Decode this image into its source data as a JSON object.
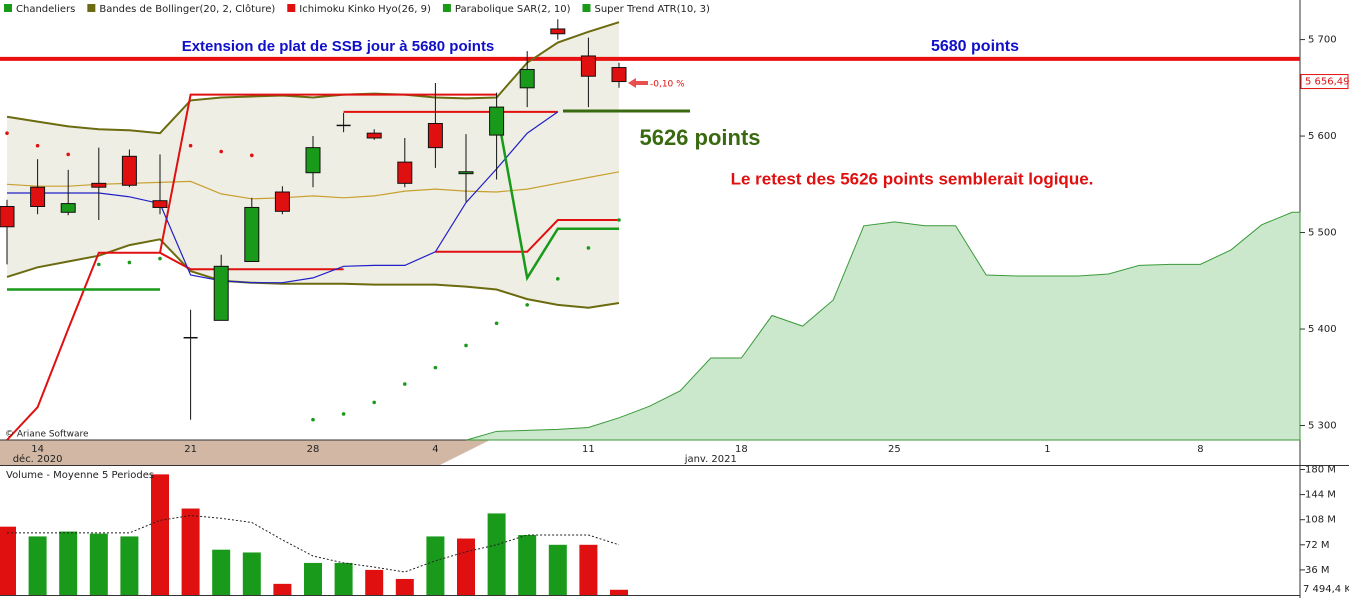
{
  "chart_data": [
    {
      "type": "candlestick",
      "legend": [
        {
          "name": "Chandeliers",
          "color": "#1a9a1a"
        },
        {
          "name": "Bandes de Bollinger(20, 2, Clôture)",
          "color": "#6b6b10"
        },
        {
          "name": "Ichimoku Kinko Hyo(26, 9)",
          "color": "#e01010"
        },
        {
          "name": "Parabolique SAR(2, 10)",
          "color": "#1a9a1a"
        },
        {
          "name": "Super Trend ATR(10, 3)",
          "color": "#1a9a1a"
        }
      ],
      "categories": [
        null,
        "14",
        null,
        null,
        null,
        null,
        "21",
        null,
        null,
        null,
        "28",
        null,
        null,
        null,
        "4",
        null,
        null,
        null,
        null,
        "11",
        null,
        null,
        null,
        null,
        "18",
        null,
        null,
        null,
        null,
        "25",
        null,
        null,
        null,
        null,
        "1",
        null,
        null,
        null,
        null,
        "8",
        null,
        null,
        null
      ],
      "category_months": [
        null,
        "déc. 2020",
        null,
        null,
        null,
        null,
        null,
        null,
        null,
        null,
        null,
        null,
        null,
        null,
        null,
        null,
        null,
        null,
        null,
        null,
        null,
        null,
        null,
        "janv. 2021",
        null,
        null,
        null,
        null,
        null,
        null,
        null,
        null,
        null,
        null,
        null,
        null,
        null,
        null,
        null,
        null,
        null,
        null,
        null
      ],
      "candles": {
        "up_color": "#1a9a1a",
        "down_color": "#e01010",
        "open": [
          5527,
          5547,
          5521,
          5551,
          5579,
          5533,
          5391,
          5409,
          5470,
          5542,
          5562,
          5611,
          5603,
          5573,
          5613,
          5561,
          5601,
          5650,
          5711,
          5683,
          5671,
          null,
          null,
          null,
          null,
          null,
          null,
          null,
          null,
          null,
          null,
          null,
          null,
          null,
          null,
          null,
          null,
          null,
          null,
          null,
          null,
          null,
          null
        ],
        "high": [
          5534,
          5576,
          5565,
          5588,
          5586,
          5581,
          5420,
          5477,
          5536,
          5548,
          5600,
          5624,
          5607,
          5598,
          5655,
          5602,
          5645,
          5688,
          5721,
          5702,
          5676,
          null,
          null,
          null,
          null,
          null,
          null,
          null,
          null,
          null,
          null,
          null,
          null,
          null,
          null,
          null,
          null,
          null,
          null,
          null,
          null,
          null,
          null
        ],
        "low": [
          5467,
          5519,
          5518,
          5513,
          5547,
          5519,
          5306,
          5409,
          5470,
          5519,
          5547,
          5604,
          5596,
          5547,
          5567,
          5532,
          5555,
          5630,
          5700,
          5630,
          5650,
          null,
          null,
          null,
          null,
          null,
          null,
          null,
          null,
          null,
          null,
          null,
          null,
          null,
          null,
          null,
          null,
          null,
          null,
          null,
          null,
          null,
          null
        ],
        "close": [
          5506,
          5527,
          5530,
          5547,
          5549,
          5526,
          5391,
          5465,
          5526,
          5522,
          5588,
          5611,
          5598,
          5551,
          5588,
          5563,
          5630,
          5669,
          5706,
          5662,
          5656.49,
          null,
          null,
          null,
          null,
          null,
          null,
          null,
          null,
          null,
          null,
          null,
          null,
          null,
          null,
          null,
          null,
          null,
          null,
          null,
          null,
          null,
          null
        ]
      },
      "last_price_label": "5 656,49",
      "bollinger": {
        "color": "#6b6b10",
        "middle_color": "#c8a030",
        "fill": "#efeee4",
        "upper": [
          5620,
          5615,
          5610,
          5607,
          5606,
          5603,
          5637,
          5640,
          5641,
          5642,
          5640,
          5643,
          5644,
          5643,
          5640,
          5639,
          5640,
          5676,
          5697,
          5708,
          5718,
          null,
          null,
          null,
          null,
          null,
          null,
          null,
          null,
          null,
          null,
          null,
          null,
          null,
          null,
          null,
          null,
          null,
          null,
          null,
          null,
          null,
          null
        ],
        "middle": [
          5550,
          5548,
          5548,
          5550,
          5551,
          5552,
          5553,
          5540,
          5535,
          5536,
          5538,
          5536,
          5538,
          5543,
          5545,
          5543,
          5542,
          5545,
          5551,
          5557,
          5563,
          null,
          null,
          null,
          null,
          null,
          null,
          null,
          null,
          null,
          null,
          null,
          null,
          null,
          null,
          null,
          null,
          null,
          null,
          null,
          null,
          null,
          null
        ],
        "lower": [
          5454,
          5464,
          5470,
          5476,
          5487,
          5493,
          5460,
          5450,
          5448,
          5447,
          5447,
          5447,
          5446,
          5446,
          5446,
          5444,
          5441,
          5431,
          5425,
          5422,
          5427,
          null,
          null,
          null,
          null,
          null,
          null,
          null,
          null,
          null,
          null,
          null,
          null,
          null,
          null,
          null,
          null,
          null,
          null,
          null,
          null,
          null,
          null
        ]
      },
      "ichimoku": {
        "lines": [
          {
            "color": "#e01010",
            "values": [
              5285,
              5319,
              5400,
              5479,
              5479,
              5479,
              5643,
              5643,
              5643,
              5643,
              5643,
              5643,
              5643,
              5643,
              5643,
              5643,
              5643,
              null,
              null,
              null,
              null,
              null,
              null,
              null,
              null,
              null,
              null,
              null,
              null,
              null,
              null,
              null,
              null,
              null,
              null,
              null,
              null,
              null,
              null,
              null,
              null,
              null,
              null
            ]
          },
          {
            "color": "#e01010",
            "values": [
              null,
              null,
              null,
              null,
              null,
              5479,
              5462,
              5462,
              5462,
              5462,
              5462,
              5462,
              null,
              null,
              5480,
              5480,
              5480,
              5480,
              5513,
              5513,
              5513,
              null,
              null,
              null,
              null,
              null,
              null,
              null,
              null,
              null,
              null,
              null,
              null,
              null,
              null,
              null,
              null,
              null,
              null,
              null,
              null,
              null,
              null
            ]
          },
          {
            "color": "#e01010",
            "values": [
              null,
              null,
              null,
              null,
              null,
              null,
              null,
              null,
              null,
              null,
              null,
              5625,
              5625,
              5625,
              5625,
              5625,
              5625,
              5625,
              5625,
              null,
              null,
              null,
              null,
              null,
              null,
              null,
              null,
              null,
              null,
              null,
              null,
              null,
              null,
              null,
              null,
              null,
              null,
              null,
              null,
              null,
              null,
              null,
              null
            ]
          },
          {
            "color": "#2020c8",
            "values": [
              5541,
              5541,
              5541,
              5541,
              5537,
              5530,
              5456,
              5450,
              5448,
              5448,
              5453,
              5465,
              5466,
              5466,
              5480,
              5531,
              5566,
              5603,
              5625,
              null,
              null,
              null,
              null,
              null,
              null,
              null,
              null,
              null,
              null,
              null,
              null,
              null,
              null,
              null,
              null,
              null,
              null,
              null,
              null,
              null,
              null,
              null,
              null
            ]
          }
        ],
        "cloud": {
          "color": "#cce8cc",
          "line_color": "#3a9a3a",
          "values": [
            null,
            null,
            null,
            null,
            null,
            null,
            null,
            null,
            null,
            null,
            null,
            null,
            null,
            null,
            null,
            null,
            5294,
            5295,
            5296,
            5298,
            5308,
            5320,
            5336,
            5370,
            5370,
            5414,
            5403,
            5430,
            5507,
            5511,
            5507,
            5507,
            5456,
            5455,
            5455,
            5455,
            5457,
            5466,
            5467,
            5467,
            5482,
            5508,
            5521
          ]
        }
      },
      "sar": {
        "above_color": "#e01010",
        "below_color": "#1a9a1a",
        "values": [
          5603,
          5590,
          5581,
          5467,
          5469,
          5473,
          5590,
          5584,
          5580,
          null,
          5306,
          5312,
          5324,
          5343,
          5360,
          5383,
          5406,
          5425,
          5452,
          5484,
          5513,
          null,
          null,
          null,
          null,
          null,
          null,
          null,
          null,
          null,
          null,
          null,
          null,
          null,
          null,
          null,
          null,
          null,
          null,
          null,
          null,
          null,
          null
        ]
      },
      "supertrend": {
        "color": "#1a9a1a",
        "values": [
          5441,
          5441,
          5441,
          5441,
          5441,
          5441,
          null,
          null,
          null,
          null,
          null,
          null,
          null,
          null,
          null,
          null,
          5628,
          5453,
          5504,
          5504,
          5504,
          null,
          null,
          null,
          null,
          null,
          null,
          null,
          null,
          null,
          null,
          null,
          null,
          null,
          null,
          null,
          null,
          null,
          null,
          null,
          null,
          null,
          null
        ]
      },
      "ylim": [
        5285,
        5741
      ],
      "yticks": [
        {
          "value": 5300,
          "label": "5 300"
        },
        {
          "value": 5400,
          "label": "5 400"
        },
        {
          "value": 5500,
          "label": "5 500"
        },
        {
          "value": 5600,
          "label": "5 600"
        },
        {
          "value": 5700,
          "label": "5 700"
        }
      ],
      "levels": [
        {
          "value": 5680,
          "color": "#e81010"
        },
        {
          "value": 5626,
          "color": "#3a6a10"
        }
      ],
      "annotations": {
        "headline": "Extension de plat de SSB jour à 5680 points",
        "level_label": "5680 points",
        "support_label": "5626 points",
        "comment": "Le retest des 5626 points semblerait logique.",
        "change": "-0,10 %",
        "copyright": "© Ariane Software"
      }
    },
    {
      "type": "bar",
      "title": "Volume  - Moyenne 5 Periodes",
      "values": [
        98,
        84,
        91,
        88,
        84,
        173,
        124,
        65,
        61,
        16,
        46,
        46,
        36,
        23,
        84,
        81,
        117,
        86,
        72,
        72,
        7.4944
      ],
      "value_labels": [
        null,
        null,
        null,
        null,
        null,
        null,
        null,
        null,
        null,
        null,
        null,
        null,
        null,
        null,
        null,
        null,
        null,
        null,
        null,
        null,
        "7 494,4 K"
      ],
      "colors": [
        "#e01010",
        "#1a9a1a",
        "#1a9a1a",
        "#1a9a1a",
        "#1a9a1a",
        "#e01010",
        "#e01010",
        "#1a9a1a",
        "#1a9a1a",
        "#e01010",
        "#1a9a1a",
        "#1a9a1a",
        "#e01010",
        "#e01010",
        "#1a9a1a",
        "#e01010",
        "#1a9a1a",
        "#1a9a1a",
        "#1a9a1a",
        "#e01010",
        "#e01010"
      ],
      "moving_average": [
        89,
        89,
        89,
        89,
        89,
        107,
        114,
        110,
        104,
        79,
        56,
        46,
        40,
        33,
        49,
        62,
        72,
        86,
        86,
        86,
        72
      ],
      "ylim": [
        0,
        185
      ],
      "yticks": [
        {
          "value": 36,
          "label": "36 M"
        },
        {
          "value": 72,
          "label": "72 M"
        },
        {
          "value": 108,
          "label": "108 M"
        },
        {
          "value": 144,
          "label": "144 M"
        },
        {
          "value": 180,
          "label": "180 M"
        }
      ]
    }
  ]
}
